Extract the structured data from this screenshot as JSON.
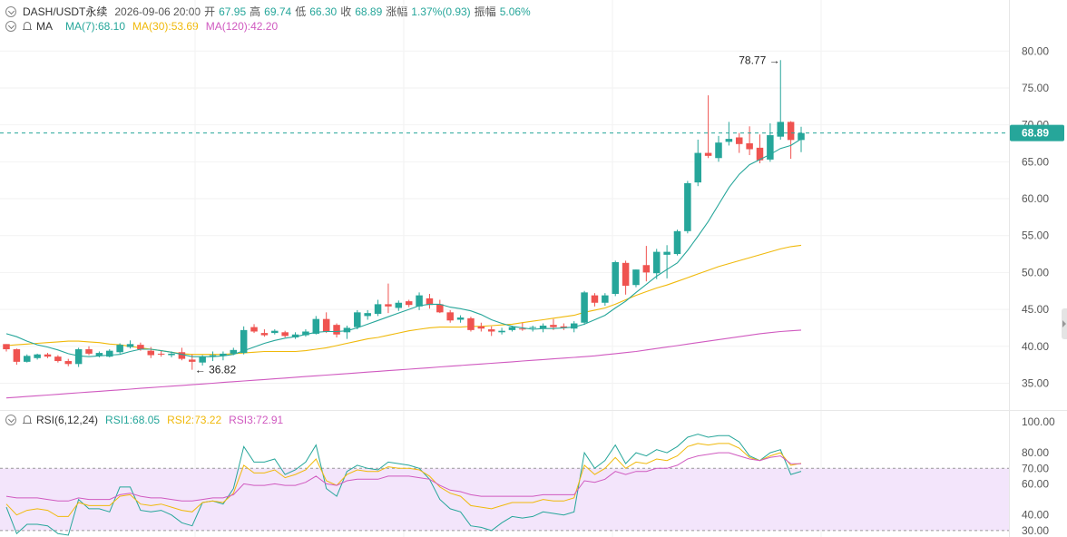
{
  "header": {
    "symbol": "DASH/USDT永续",
    "datetime": "2026-09-06 20:00",
    "open_label": "开",
    "open": "67.95",
    "high_label": "高",
    "high": "69.74",
    "low_label": "低",
    "low": "66.30",
    "close_label": "收",
    "close": "68.89",
    "change_label": "涨幅",
    "change": "1.37%(0.93)",
    "amp_label": "振幅",
    "amp": "5.06%"
  },
  "ma_legend": {
    "title": "MA",
    "ma7": "MA(7):68.10",
    "ma30": "MA(30):53.69",
    "ma120": "MA(120):42.20"
  },
  "rsi_legend": {
    "title": "RSI(6,12,24)",
    "rsi1": "RSI1:68.05",
    "rsi2": "RSI2:73.22",
    "rsi3": "RSI3:72.91"
  },
  "colors": {
    "up": "#26a69a",
    "down": "#ef5350",
    "ma7": "#26a69a",
    "ma30": "#f0b90b",
    "ma120": "#d05ac0",
    "rsi_band": "#f3e5fb"
  },
  "chart_data": [
    {
      "type": "candlestick",
      "y_ticks": [
        "80.00",
        "75.00",
        "70.00",
        "65.00",
        "60.00",
        "55.00",
        "50.00",
        "45.00",
        "40.00",
        "35.00"
      ],
      "ylim": [
        31,
        82
      ],
      "current_price": "68.89",
      "annotations": {
        "max_label": "78.77",
        "min_label": "36.82"
      },
      "candles": [
        [
          40.3,
          40.3,
          39.3,
          39.6
        ],
        [
          39.6,
          39.7,
          37.5,
          37.9
        ],
        [
          37.9,
          38.9,
          37.8,
          38.7
        ],
        [
          38.4,
          39.0,
          38.2,
          38.9
        ],
        [
          38.9,
          39.1,
          38.4,
          38.6
        ],
        [
          38.6,
          38.8,
          37.8,
          38.0
        ],
        [
          38.0,
          38.3,
          37.3,
          37.6
        ],
        [
          37.6,
          39.8,
          37.2,
          39.6
        ],
        [
          39.6,
          40.0,
          38.8,
          39.0
        ],
        [
          38.7,
          39.3,
          38.5,
          39.1
        ],
        [
          38.6,
          39.6,
          38.5,
          39.4
        ],
        [
          39.2,
          40.4,
          39.0,
          40.2
        ],
        [
          39.9,
          40.8,
          39.7,
          40.3
        ],
        [
          40.2,
          40.5,
          39.4,
          39.6
        ],
        [
          39.4,
          39.9,
          38.4,
          38.8
        ],
        [
          39.0,
          39.4,
          38.6,
          38.9
        ],
        [
          38.8,
          39.3,
          38.5,
          39.0
        ],
        [
          39.2,
          39.8,
          38.1,
          38.3
        ],
        [
          38.2,
          38.9,
          36.82,
          37.9
        ],
        [
          37.8,
          38.8,
          37.4,
          38.6
        ],
        [
          38.7,
          39.3,
          38.0,
          38.8
        ],
        [
          38.7,
          39.3,
          38.1,
          39.0
        ],
        [
          39.0,
          39.8,
          38.8,
          39.5
        ],
        [
          39.1,
          42.7,
          38.9,
          42.2
        ],
        [
          42.6,
          43.0,
          41.8,
          42.0
        ],
        [
          41.8,
          42.3,
          41.3,
          41.5
        ],
        [
          41.8,
          42.3,
          41.6,
          42.1
        ],
        [
          41.9,
          42.1,
          41.2,
          41.4
        ],
        [
          41.2,
          41.9,
          41.0,
          41.6
        ],
        [
          41.5,
          42.3,
          41.3,
          42.0
        ],
        [
          41.7,
          44.1,
          41.6,
          43.7
        ],
        [
          43.7,
          44.6,
          41.8,
          42.0
        ],
        [
          42.9,
          43.1,
          41.2,
          41.6
        ],
        [
          41.9,
          42.8,
          41.0,
          42.5
        ],
        [
          42.6,
          44.9,
          42.3,
          44.6
        ],
        [
          44.1,
          44.9,
          43.6,
          44.5
        ],
        [
          44.4,
          46.3,
          44.1,
          45.7
        ],
        [
          45.7,
          48.5,
          44.5,
          45.4
        ],
        [
          45.2,
          46.2,
          44.8,
          45.9
        ],
        [
          46.1,
          46.3,
          45.3,
          45.6
        ],
        [
          45.4,
          47.3,
          44.9,
          46.9
        ],
        [
          46.5,
          47.1,
          45.1,
          45.6
        ],
        [
          45.7,
          46.3,
          44.5,
          44.6
        ],
        [
          44.6,
          44.9,
          43.2,
          43.5
        ],
        [
          43.6,
          44.2,
          43.2,
          43.9
        ],
        [
          43.8,
          44.0,
          42.0,
          42.2
        ],
        [
          42.7,
          43.2,
          42.0,
          42.4
        ],
        [
          42.3,
          42.7,
          41.4,
          42.0
        ],
        [
          41.9,
          42.5,
          41.6,
          42.1
        ],
        [
          42.2,
          42.8,
          42.0,
          42.6
        ],
        [
          42.4,
          43.2,
          42.1,
          42.3
        ],
        [
          42.5,
          42.8,
          42.0,
          42.6
        ],
        [
          42.4,
          43.1,
          41.9,
          42.8
        ],
        [
          42.9,
          43.7,
          42.2,
          42.6
        ],
        [
          42.7,
          43.1,
          42.2,
          42.5
        ],
        [
          42.4,
          43.4,
          41.9,
          43.1
        ],
        [
          43.2,
          47.5,
          42.9,
          47.3
        ],
        [
          46.9,
          47.2,
          45.4,
          45.9
        ],
        [
          45.9,
          47.2,
          45.5,
          46.9
        ],
        [
          47.1,
          51.6,
          46.8,
          51.4
        ],
        [
          51.3,
          51.6,
          47.0,
          48.2
        ],
        [
          48.3,
          50.4,
          48.0,
          50.4
        ],
        [
          51.0,
          53.6,
          48.8,
          50.0
        ],
        [
          49.9,
          53.2,
          49.1,
          52.8
        ],
        [
          52.4,
          53.7,
          49.2,
          52.8
        ],
        [
          52.5,
          55.8,
          52.3,
          55.6
        ],
        [
          55.6,
          62.4,
          55.3,
          62.1
        ],
        [
          62.2,
          68.0,
          61.7,
          66.2
        ],
        [
          66.2,
          74.0,
          65.5,
          65.8
        ],
        [
          65.5,
          68.5,
          65.0,
          67.6
        ],
        [
          67.7,
          70.4,
          67.2,
          68.1
        ],
        [
          68.3,
          68.9,
          66.2,
          67.4
        ],
        [
          67.5,
          69.8,
          65.9,
          66.7
        ],
        [
          66.9,
          68.7,
          64.8,
          65.2
        ],
        [
          65.3,
          70.2,
          65.0,
          68.6
        ],
        [
          68.4,
          78.77,
          68.0,
          70.4
        ],
        [
          70.4,
          70.5,
          65.4,
          67.95
        ],
        [
          67.95,
          69.74,
          66.3,
          68.89
        ]
      ],
      "ma7": [
        41.7,
        41.3,
        40.7,
        40.2,
        39.9,
        39.5,
        39.0,
        38.7,
        38.6,
        38.7,
        38.8,
        38.9,
        39.3,
        39.6,
        39.6,
        39.4,
        39.2,
        38.9,
        38.6,
        38.6,
        38.6,
        38.7,
        38.9,
        39.4,
        39.9,
        40.4,
        40.8,
        41.1,
        41.3,
        41.6,
        41.9,
        42.0,
        42.0,
        42.1,
        42.5,
        43.0,
        43.5,
        44.0,
        44.5,
        45.0,
        45.5,
        45.7,
        45.7,
        45.3,
        45.1,
        44.8,
        44.3,
        43.6,
        43.1,
        42.7,
        42.5,
        42.3,
        42.4,
        42.4,
        42.5,
        42.6,
        43.0,
        43.6,
        44.2,
        45.2,
        46.1,
        47.3,
        48.4,
        49.5,
        50.4,
        51.3,
        53.0,
        54.9,
        56.9,
        59.2,
        61.5,
        63.3,
        64.6,
        65.3,
        66.0,
        66.8,
        67.2,
        68.1
      ],
      "ma30": [
        40.1,
        40.2,
        40.3,
        40.4,
        40.5,
        40.6,
        40.7,
        40.7,
        40.6,
        40.5,
        40.3,
        40.2,
        40.0,
        39.8,
        39.6,
        39.4,
        39.2,
        39.0,
        38.9,
        38.9,
        38.9,
        38.9,
        39.0,
        39.1,
        39.2,
        39.3,
        39.3,
        39.3,
        39.3,
        39.4,
        39.6,
        39.8,
        40.1,
        40.4,
        40.7,
        41.0,
        41.2,
        41.5,
        41.8,
        42.1,
        42.3,
        42.5,
        42.6,
        42.6,
        42.6,
        42.7,
        42.7,
        42.8,
        42.9,
        43.0,
        43.2,
        43.4,
        43.6,
        43.8,
        44.0,
        44.2,
        44.6,
        44.9,
        45.2,
        45.7,
        46.3,
        46.9,
        47.4,
        47.9,
        48.3,
        48.8,
        49.3,
        49.8,
        50.3,
        50.8,
        51.2,
        51.6,
        52.0,
        52.4,
        52.8,
        53.2,
        53.5,
        53.69
      ],
      "ma120": [
        33.0,
        33.1,
        33.2,
        33.3,
        33.4,
        33.5,
        33.6,
        33.7,
        33.8,
        33.9,
        34.0,
        34.1,
        34.2,
        34.3,
        34.4,
        34.5,
        34.6,
        34.7,
        34.8,
        34.9,
        35.0,
        35.1,
        35.2,
        35.3,
        35.4,
        35.5,
        35.6,
        35.7,
        35.8,
        35.9,
        36.0,
        36.1,
        36.2,
        36.3,
        36.4,
        36.5,
        36.6,
        36.7,
        36.8,
        36.9,
        37.0,
        37.1,
        37.2,
        37.3,
        37.4,
        37.5,
        37.6,
        37.7,
        37.8,
        37.9,
        38.0,
        38.1,
        38.2,
        38.3,
        38.4,
        38.5,
        38.6,
        38.7,
        38.85,
        39.0,
        39.15,
        39.3,
        39.5,
        39.7,
        39.9,
        40.1,
        40.3,
        40.5,
        40.7,
        40.9,
        41.1,
        41.3,
        41.5,
        41.7,
        41.85,
        42.0,
        42.1,
        42.2
      ]
    },
    {
      "type": "line",
      "y_ticks": [
        "100.00",
        "80.00",
        "70.00",
        "60.00",
        "40.00",
        "30.00"
      ],
      "ylim": [
        27,
        104
      ],
      "band": [
        30,
        70
      ],
      "series": [
        {
          "name": "RSI1",
          "values": [
            45,
            28,
            34,
            34,
            33,
            28,
            27,
            50,
            44,
            44,
            42,
            58,
            58,
            43,
            42,
            43,
            40,
            35,
            33,
            48,
            49,
            47,
            57,
            84,
            74,
            74,
            76,
            66,
            69,
            74,
            85,
            57,
            52,
            68,
            72,
            70,
            69,
            74,
            73,
            72,
            70,
            63,
            50,
            44,
            42,
            33,
            32,
            30,
            35,
            39,
            38,
            39,
            42,
            41,
            40,
            42,
            80,
            70,
            75,
            85,
            73,
            80,
            78,
            82,
            80,
            84,
            90,
            92,
            90,
            91,
            91,
            87,
            78,
            75,
            80,
            82,
            66,
            68.05
          ]
        },
        {
          "name": "RSI2",
          "values": [
            47,
            40,
            43,
            44,
            43,
            39,
            39,
            48,
            46,
            46,
            46,
            52,
            53,
            47,
            46,
            47,
            45,
            43,
            42,
            48,
            49,
            48,
            54,
            72,
            67,
            67,
            69,
            64,
            66,
            69,
            76,
            62,
            59,
            66,
            69,
            68,
            68,
            71,
            70,
            70,
            69,
            65,
            58,
            54,
            52,
            46,
            45,
            44,
            46,
            48,
            48,
            48,
            50,
            49,
            49,
            51,
            72,
            66,
            70,
            77,
            70,
            74,
            73,
            76,
            75,
            78,
            84,
            86,
            85,
            86,
            86,
            83,
            77,
            75,
            78,
            80,
            72,
            73.22
          ]
        },
        {
          "name": "RSI3",
          "values": [
            52,
            51,
            51,
            51,
            50,
            49,
            49,
            51,
            50,
            50,
            50,
            53,
            54,
            52,
            51,
            51,
            50,
            49,
            49,
            50,
            51,
            51,
            53,
            60,
            59,
            59,
            60,
            59,
            59,
            61,
            65,
            60,
            59,
            62,
            63,
            63,
            63,
            65,
            65,
            65,
            64,
            63,
            59,
            56,
            55,
            53,
            52,
            52,
            52,
            52,
            52,
            52,
            53,
            53,
            53,
            53,
            62,
            61,
            63,
            68,
            66,
            68,
            68,
            70,
            70,
            72,
            76,
            78,
            79,
            80,
            80,
            78,
            76,
            75,
            77,
            78,
            73,
            72.91
          ]
        }
      ]
    }
  ]
}
